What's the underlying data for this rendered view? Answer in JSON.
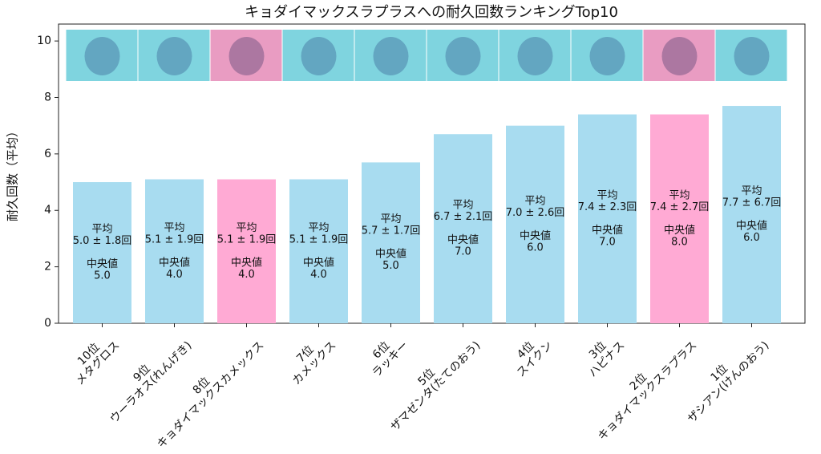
{
  "chart_data": {
    "type": "bar",
    "title": "キョダイマックスラプラスへの耐久回数ランキングTop10",
    "ylabel": "耐久回数（平均）",
    "ranks": [
      "10位",
      "9位",
      "8位",
      "7位",
      "6位",
      "5位",
      "4位",
      "3位",
      "2位",
      "1位"
    ],
    "categories": [
      "メタグロス",
      "ウーラオス(れんげき)",
      "キョダイマックスカメックス",
      "カメックス",
      "ラッキー",
      "ザマゼンタ(たてのおう)",
      "スイクン",
      "ハピナス",
      "キョダイマックスラプラス",
      "ザシアン(けんのおう)"
    ],
    "values": [
      5.0,
      5.1,
      5.1,
      5.1,
      5.7,
      6.7,
      7.0,
      7.4,
      7.4,
      7.7
    ],
    "colors": [
      "#a8dcf0",
      "#a8dcf0",
      "#ffaad4",
      "#a8dcf0",
      "#a8dcf0",
      "#a8dcf0",
      "#a8dcf0",
      "#a8dcf0",
      "#ffaad4",
      "#a8dcf0"
    ],
    "mean_label": "平均",
    "value_labels": [
      "5.0 ± 1.8回",
      "5.1 ± 1.9回",
      "5.1 ± 1.9回",
      "5.1 ± 1.9回",
      "5.7 ± 1.7回",
      "6.7 ± 2.1回",
      "7.0 ± 2.6回",
      "7.4 ± 2.3回",
      "7.4 ± 2.7回",
      "7.7 ± 6.7回"
    ],
    "median_label": "中央値",
    "median_labels": [
      "5.0",
      "4.0",
      "4.0",
      "4.0",
      "5.0",
      "7.0",
      "6.0",
      "7.0",
      "8.0",
      "6.0"
    ],
    "ylim": [
      0,
      10.6
    ],
    "yticks": [
      0,
      2,
      4,
      6,
      8,
      10
    ],
    "grid": false
  }
}
